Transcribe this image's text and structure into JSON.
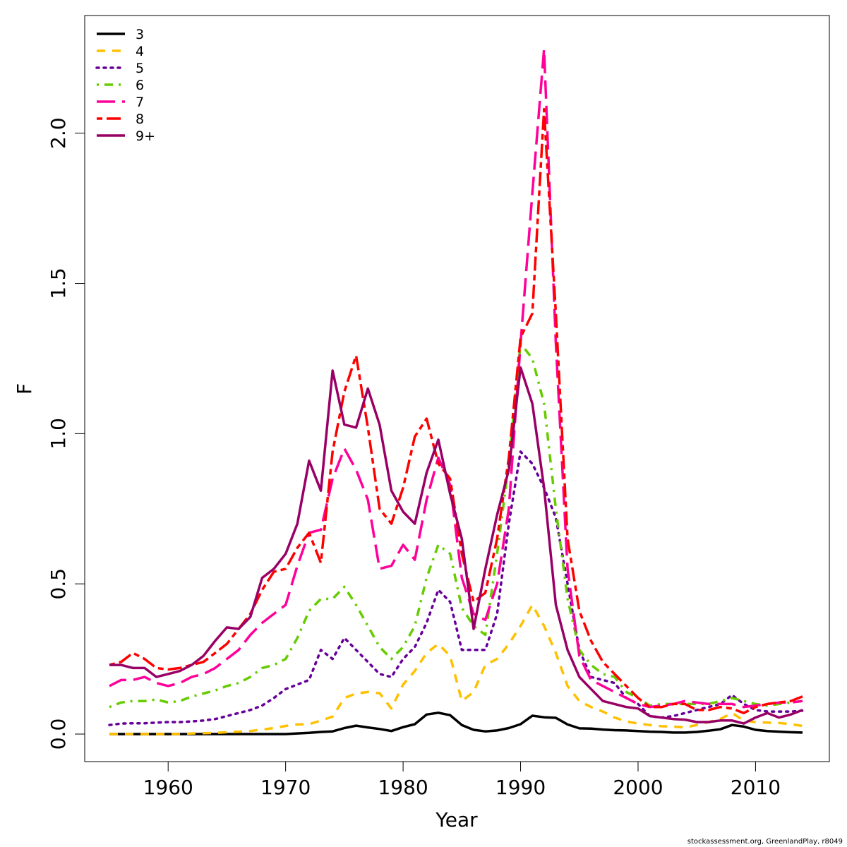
{
  "chart_data": {
    "type": "line",
    "title": "",
    "xlabel": "Year",
    "ylabel": "F",
    "xlim": [
      1955,
      2014
    ],
    "ylim": [
      0,
      2.3
    ],
    "x_ticks": [
      "1960",
      "1970",
      "1980",
      "1990",
      "2000",
      "2010"
    ],
    "y_ticks": [
      "0.0",
      "0.5",
      "1.0",
      "1.5",
      "2.0"
    ],
    "grid": false,
    "legend_position": "top-left",
    "x": [
      1955,
      1956,
      1957,
      1958,
      1959,
      1960,
      1961,
      1962,
      1963,
      1964,
      1965,
      1966,
      1967,
      1968,
      1969,
      1970,
      1971,
      1972,
      1973,
      1974,
      1975,
      1976,
      1977,
      1978,
      1979,
      1980,
      1981,
      1982,
      1983,
      1984,
      1985,
      1986,
      1987,
      1988,
      1989,
      1990,
      1991,
      1992,
      1993,
      1994,
      1995,
      1996,
      1997,
      1998,
      1999,
      2000,
      2001,
      2002,
      2003,
      2004,
      2005,
      2006,
      2007,
      2008,
      2009,
      2010,
      2011,
      2012,
      2013,
      2014
    ],
    "series": [
      {
        "name": "3",
        "color": "#000000",
        "dash": "solid",
        "values": [
          0.0,
          0.0,
          0.0,
          0.0,
          0.0,
          0.0,
          0.0,
          0.0,
          0.0,
          0.0,
          0.0,
          0.0,
          0.0,
          0.0,
          0.0,
          0.0,
          0.002,
          0.004,
          0.007,
          0.009,
          0.02,
          0.028,
          0.022,
          0.017,
          0.01,
          0.023,
          0.033,
          0.065,
          0.071,
          0.063,
          0.03,
          0.014,
          0.009,
          0.012,
          0.02,
          0.033,
          0.061,
          0.056,
          0.054,
          0.032,
          0.019,
          0.018,
          0.015,
          0.013,
          0.012,
          0.01,
          0.008,
          0.007,
          0.005,
          0.005,
          0.007,
          0.011,
          0.016,
          0.03,
          0.025,
          0.014,
          0.01,
          0.008,
          0.006,
          0.005
        ]
      },
      {
        "name": "4",
        "color": "#ffc000",
        "dash": "dashed",
        "values": [
          0.0,
          0.0,
          0.0,
          0.0,
          0.0,
          0.0,
          0.0,
          0.002,
          0.003,
          0.004,
          0.006,
          0.008,
          0.01,
          0.015,
          0.02,
          0.027,
          0.032,
          0.033,
          0.045,
          0.058,
          0.12,
          0.135,
          0.14,
          0.136,
          0.085,
          0.165,
          0.21,
          0.27,
          0.3,
          0.26,
          0.11,
          0.14,
          0.23,
          0.25,
          0.3,
          0.36,
          0.43,
          0.36,
          0.27,
          0.16,
          0.11,
          0.09,
          0.075,
          0.055,
          0.042,
          0.035,
          0.03,
          0.026,
          0.025,
          0.022,
          0.03,
          0.04,
          0.05,
          0.07,
          0.045,
          0.04,
          0.038,
          0.037,
          0.033,
          0.027
        ]
      },
      {
        "name": "5",
        "color": "#660099",
        "dash": "dotted",
        "values": [
          0.03,
          0.035,
          0.036,
          0.036,
          0.038,
          0.04,
          0.04,
          0.042,
          0.045,
          0.05,
          0.06,
          0.07,
          0.08,
          0.095,
          0.12,
          0.15,
          0.165,
          0.18,
          0.28,
          0.25,
          0.32,
          0.28,
          0.24,
          0.2,
          0.19,
          0.25,
          0.29,
          0.37,
          0.48,
          0.44,
          0.28,
          0.28,
          0.28,
          0.4,
          0.7,
          0.94,
          0.9,
          0.82,
          0.72,
          0.5,
          0.28,
          0.19,
          0.18,
          0.17,
          0.12,
          0.1,
          0.06,
          0.055,
          0.06,
          0.07,
          0.08,
          0.09,
          0.1,
          0.13,
          0.1,
          0.08,
          0.075,
          0.075,
          0.075,
          0.078
        ]
      },
      {
        "name": "6",
        "color": "#66cc00",
        "dash": "dashdot",
        "values": [
          0.09,
          0.105,
          0.11,
          0.11,
          0.115,
          0.105,
          0.11,
          0.125,
          0.135,
          0.145,
          0.16,
          0.17,
          0.19,
          0.22,
          0.23,
          0.25,
          0.32,
          0.41,
          0.45,
          0.45,
          0.49,
          0.43,
          0.36,
          0.29,
          0.25,
          0.29,
          0.36,
          0.52,
          0.63,
          0.6,
          0.42,
          0.36,
          0.33,
          0.6,
          0.9,
          1.3,
          1.25,
          1.1,
          0.75,
          0.45,
          0.28,
          0.23,
          0.2,
          0.19,
          0.14,
          0.12,
          0.095,
          0.1,
          0.1,
          0.1,
          0.1,
          0.1,
          0.11,
          0.12,
          0.11,
          0.1,
          0.095,
          0.1,
          0.105,
          0.11
        ]
      },
      {
        "name": "7",
        "color": "#ff0099",
        "dash": "longdash",
        "values": [
          0.16,
          0.18,
          0.18,
          0.19,
          0.17,
          0.16,
          0.17,
          0.19,
          0.2,
          0.22,
          0.25,
          0.28,
          0.33,
          0.37,
          0.4,
          0.43,
          0.56,
          0.67,
          0.68,
          0.85,
          0.95,
          0.88,
          0.78,
          0.55,
          0.56,
          0.63,
          0.58,
          0.78,
          0.92,
          0.83,
          0.52,
          0.4,
          0.38,
          0.5,
          0.75,
          1.3,
          1.8,
          2.28,
          1.3,
          0.55,
          0.26,
          0.18,
          0.16,
          0.14,
          0.12,
          0.1,
          0.09,
          0.095,
          0.1,
          0.11,
          0.105,
          0.1,
          0.1,
          0.1,
          0.09,
          0.095,
          0.1,
          0.105,
          0.105,
          0.11
        ]
      },
      {
        "name": "8",
        "color": "#ff0000",
        "dash": "twodash",
        "values": [
          0.23,
          0.24,
          0.27,
          0.25,
          0.22,
          0.215,
          0.22,
          0.23,
          0.24,
          0.27,
          0.3,
          0.35,
          0.4,
          0.48,
          0.54,
          0.55,
          0.62,
          0.67,
          0.57,
          0.94,
          1.14,
          1.26,
          1.02,
          0.75,
          0.7,
          0.82,
          0.99,
          1.05,
          0.9,
          0.85,
          0.6,
          0.44,
          0.47,
          0.65,
          0.92,
          1.32,
          1.4,
          2.08,
          1.4,
          0.65,
          0.41,
          0.31,
          0.24,
          0.2,
          0.16,
          0.12,
          0.09,
          0.09,
          0.1,
          0.1,
          0.08,
          0.08,
          0.09,
          0.085,
          0.07,
          0.09,
          0.1,
          0.105,
          0.11,
          0.125
        ]
      },
      {
        "name": "9+",
        "color": "#990066",
        "dash": "solid",
        "values": [
          0.23,
          0.23,
          0.22,
          0.22,
          0.19,
          0.2,
          0.21,
          0.23,
          0.26,
          0.31,
          0.355,
          0.35,
          0.39,
          0.52,
          0.55,
          0.6,
          0.7,
          0.91,
          0.81,
          1.21,
          1.03,
          1.02,
          1.15,
          1.03,
          0.81,
          0.74,
          0.7,
          0.87,
          0.98,
          0.8,
          0.65,
          0.35,
          0.55,
          0.73,
          0.88,
          1.22,
          1.1,
          0.82,
          0.43,
          0.28,
          0.19,
          0.15,
          0.11,
          0.1,
          0.09,
          0.085,
          0.06,
          0.055,
          0.05,
          0.048,
          0.04,
          0.04,
          0.045,
          0.045,
          0.035,
          0.055,
          0.07,
          0.055,
          0.065,
          0.08
        ]
      }
    ],
    "credit": "stockassessment.org, GreenlandPlay, r8049"
  }
}
